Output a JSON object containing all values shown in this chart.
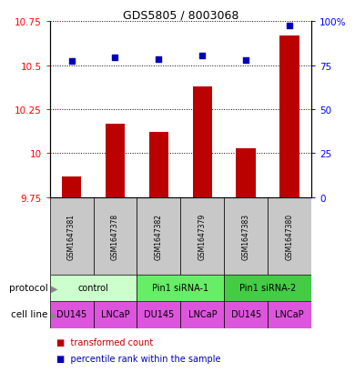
{
  "title": "GDS5805 / 8003068",
  "samples": [
    "GSM1647381",
    "GSM1647378",
    "GSM1647382",
    "GSM1647379",
    "GSM1647383",
    "GSM1647380"
  ],
  "red_values": [
    9.87,
    10.17,
    10.12,
    10.38,
    10.03,
    10.67
  ],
  "blue_values": [
    77.5,
    79.5,
    78.5,
    80.5,
    78.0,
    97.5
  ],
  "ylim_left": [
    9.75,
    10.75
  ],
  "ylim_right": [
    0,
    100
  ],
  "yticks_left": [
    9.75,
    10.0,
    10.25,
    10.5,
    10.75
  ],
  "yticks_right": [
    0,
    25,
    50,
    75,
    100
  ],
  "ytick_labels_left": [
    "9.75",
    "10",
    "10.25",
    "10.5",
    "10.75"
  ],
  "ytick_labels_right": [
    "0",
    "25",
    "50",
    "75",
    "100%"
  ],
  "protocols": [
    {
      "label": "control",
      "span": [
        0,
        2
      ],
      "color": "#ccffcc"
    },
    {
      "label": "Pin1 siRNA-1",
      "span": [
        2,
        4
      ],
      "color": "#66ee66"
    },
    {
      "label": "Pin1 siRNA-2",
      "span": [
        4,
        6
      ],
      "color": "#44cc44"
    }
  ],
  "cell_line_labels": [
    "DU145",
    "LNCaP",
    "DU145",
    "LNCaP",
    "DU145",
    "LNCaP"
  ],
  "cell_line_color": "#dd55dd",
  "red_color": "#bb0000",
  "blue_color": "#0000bb",
  "bar_bottom": 9.75,
  "grid_color": "#555555",
  "sample_bg_color": "#c8c8c8",
  "title_fontsize": 9,
  "tick_fontsize": 7.5,
  "sample_fontsize": 5.5,
  "row_label_fontsize": 7.5,
  "prot_fontsize": 7,
  "cell_fontsize": 7,
  "legend_fontsize": 7
}
